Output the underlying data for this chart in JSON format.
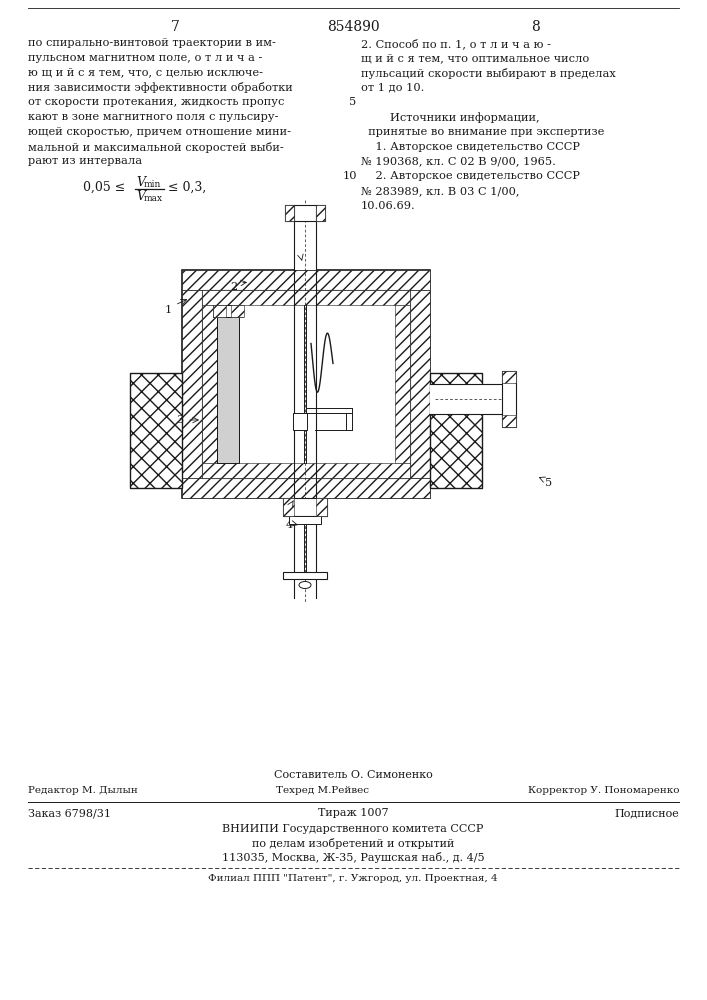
{
  "patent_number": "854890",
  "page_left": "7",
  "page_right": "8",
  "background_color": "#ffffff",
  "text_color": "#1a1a1a",
  "left_column_text": [
    "по спирально-винтовой траектории в им-",
    "пульсном магнитном поле, о т л и ч а -",
    "ю щ и й с я тем, что, с целью исключе-",
    "ния зависимости эффективности обработки",
    "от скорости протекания, жидкость пропус",
    "кают в зоне магнитного поля с пульсиру-",
    "ющей скоростью, причем отношение мини-",
    "мальной и максимальной скоростей выби-",
    "рают из интервала"
  ],
  "right_column_text": [
    "2. Способ по п. 1, о т л и ч а ю -",
    "щ и й с я тем, что оптимальное число",
    "пульсаций скорости выбирают в пределах",
    "от 1 до 10.",
    "",
    "        Источники информации,",
    "  принятые во внимание при экспертизе",
    "    1. Авторское свидетельство СССР",
    "№ 190368, кл. С 02 В 9/00, 1965.",
    "    2. Авторское свидетельство СССР",
    "№ 283989, кл. В 03 С 1/00,",
    "10.06.69."
  ],
  "footer_composer": "Составитель О. Симоненко",
  "footer_editor": "Редактор М. Дылын",
  "footer_tech": "Техред М.Рейвес",
  "footer_corrector": "Корректор У. Пономаренко",
  "footer_order": "Заказ 6798/31",
  "footer_tirage": "Тираж 1007",
  "footer_subscription": "Подписное",
  "footer_org1": "ВНИИПИ Государственного комитета СССР",
  "footer_org2": "по делам изобретений и открытий",
  "footer_address": "113035, Москва, Ж-35, Раушская наб., д. 4/5",
  "footer_branch": "Филиал ППП \"Патент\", г. Ужгород, ул. Проектная, 4"
}
